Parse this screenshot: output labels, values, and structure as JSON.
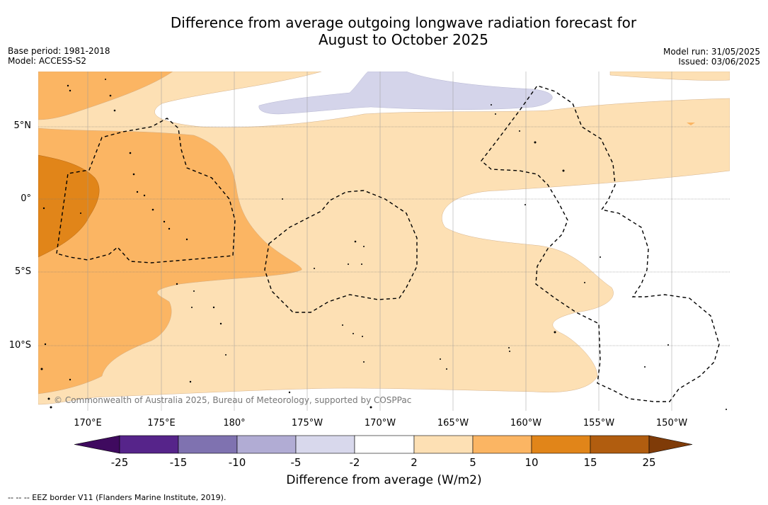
{
  "title": {
    "line1": "Difference from average outgoing longwave radiation forecast for",
    "line2": "August to October 2025"
  },
  "meta": {
    "base_period": "Base period: 1981-2018",
    "model": "Model: ACCESS-S2",
    "model_run": "Model run: 31/05/2025",
    "issued": "Issued: 03/06/2025"
  },
  "map": {
    "latitude_labels": [
      "5°N",
      "0°",
      "5°S",
      "10°S"
    ],
    "longitude_labels": [
      "170°E",
      "175°E",
      "180°",
      "175°W",
      "170°W",
      "165°W",
      "160°W",
      "155°W",
      "150°W"
    ],
    "copyright": "© Commonwealth of Australia 2025, Bureau of Meteorology, supported by COSPPac",
    "colors": {
      "light_orange": "#fde0b4",
      "mid_orange": "#fbb563",
      "dark_orange": "#e18519",
      "lavender": "#d4d4ea"
    }
  },
  "colorbar": {
    "ticks": [
      "-25",
      "-15",
      "-10",
      "-5",
      "-2",
      "2",
      "5",
      "10",
      "15",
      "25"
    ],
    "label": "Difference from average (W/m2)",
    "colors": [
      "#3f0a5f",
      "#56248a",
      "#7f72b0",
      "#b1acd4",
      "#d8d8ec",
      "#ffffff",
      "#fde0b4",
      "#fbb563",
      "#e18519",
      "#b15d0f",
      "#7f3b08"
    ]
  },
  "legend": {
    "text": "--  --  -- EEZ border V11 (Flanders Marine Institute, 2019)."
  }
}
